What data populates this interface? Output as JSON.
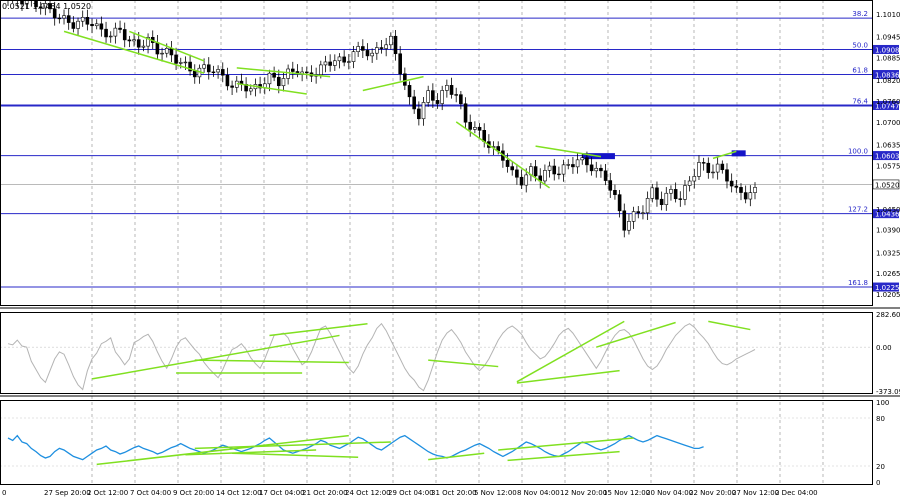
{
  "header": {
    "ohlc_text": "0.0521 1.0484 1.0520"
  },
  "colors": {
    "background": "#ffffff",
    "grid": "#9a9a9a",
    "fib_line": "#2828c8",
    "price_box": "#1414c8",
    "candle": "#000000",
    "divergence": "#80e020",
    "cci_line": "#b4b4b4",
    "rsi_line": "#1e8fe0",
    "axis_text": "#000000"
  },
  "chart_data": [
    {
      "type": "candlestick",
      "title": "",
      "ylim": [
        1.0205,
        1.1035
      ],
      "x_ticks": [
        "0",
        "27 Sep 20:00",
        "2 Oct 12:00",
        "7 Oct 04:00",
        "9 Oct 20:00",
        "14 Oct 12:00",
        "17 Oct 04:00",
        "21 Oct 20:00",
        "24 Oct 12:00",
        "29 Oct 04:00",
        "31 Oct 20:00",
        "5 Nov 12:00",
        "8 Nov 04:00",
        "12 Nov 20:00",
        "15 Nov 12:00",
        "20 Nov 04:00",
        "22 Nov 20:00",
        "27 Nov 12:00",
        "2 Dec 04:00"
      ],
      "y_ticks": [
        "1.1010",
        "1.0945",
        "1.0885",
        "1.0820",
        "1.0760",
        "1.0700",
        "1.0635",
        "1.0575",
        "1.0450",
        "1.0390",
        "1.0325",
        "1.0265",
        "1.0205"
      ],
      "fib_levels": [
        {
          "ratio": "38.2",
          "price": 1.0998,
          "badge": ""
        },
        {
          "ratio": "50.0",
          "price": 1.0908,
          "badge": "1.0908"
        },
        {
          "ratio": "61.8",
          "price": 1.0836,
          "badge": "1.0836"
        },
        {
          "ratio": "76.4",
          "price": 1.0747,
          "badge": "1.0747"
        },
        {
          "ratio": "100.0",
          "price": 1.0603,
          "badge": "1.0603"
        },
        {
          "ratio": "127.2",
          "price": 1.0436,
          "badge": "1.0436"
        },
        {
          "ratio": "161.8",
          "price": 1.0225,
          "badge": "1.0225"
        }
      ],
      "current_price": {
        "value": 1.052,
        "label": "1.0520"
      },
      "close_path": [
        [
          0,
          1.1055
        ],
        [
          4,
          1.1048
        ],
        [
          8,
          1.103
        ],
        [
          11,
          1.1
        ],
        [
          14,
          1.098
        ],
        [
          16,
          1.099
        ],
        [
          18,
          1.0985
        ],
        [
          20,
          1.096
        ],
        [
          22,
          1.095
        ],
        [
          24,
          1.0965
        ],
        [
          26,
          1.093
        ],
        [
          28,
          1.092
        ],
        [
          30,
          1.0935
        ],
        [
          32,
          1.0905
        ],
        [
          34,
          1.09
        ],
        [
          36,
          1.088
        ],
        [
          38,
          1.086
        ],
        [
          40,
          1.084
        ],
        [
          42,
          1.0855
        ],
        [
          44,
          1.085
        ],
        [
          46,
          1.083
        ],
        [
          48,
          1.08
        ],
        [
          50,
          1.081
        ],
        [
          52,
          1.079
        ],
        [
          54,
          1.0805
        ],
        [
          56,
          1.083
        ],
        [
          58,
          1.0815
        ],
        [
          60,
          1.084
        ],
        [
          62,
          1.085
        ],
        [
          64,
          1.083
        ],
        [
          66,
          1.0845
        ],
        [
          68,
          1.0865
        ],
        [
          70,
          1.088
        ],
        [
          72,
          1.087
        ],
        [
          74,
          1.09
        ],
        [
          76,
          1.091
        ],
        [
          78,
          1.089
        ],
        [
          80,
          1.092
        ],
        [
          82,
          1.0935
        ],
        [
          84,
          1.085
        ],
        [
          86,
          1.076
        ],
        [
          88,
          1.072
        ],
        [
          90,
          1.078
        ],
        [
          92,
          1.076
        ],
        [
          94,
          1.08
        ],
        [
          96,
          1.078
        ],
        [
          98,
          1.07
        ],
        [
          100,
          1.068
        ],
        [
          102,
          1.065
        ],
        [
          104,
          1.062
        ],
        [
          106,
          1.06
        ],
        [
          108,
          1.055
        ],
        [
          110,
          1.053
        ],
        [
          112,
          1.056
        ],
        [
          114,
          1.054
        ],
        [
          116,
          1.0565
        ],
        [
          118,
          1.0555
        ],
        [
          120,
          1.0575
        ],
        [
          122,
          1.059
        ],
        [
          124,
          1.058
        ],
        [
          126,
          1.056
        ],
        [
          128,
          1.054
        ],
        [
          130,
          1.048
        ],
        [
          132,
          1.04
        ],
        [
          134,
          1.043
        ],
        [
          136,
          1.045
        ],
        [
          138,
          1.05
        ],
        [
          140,
          1.047
        ],
        [
          142,
          1.05
        ],
        [
          144,
          1.048
        ],
        [
          146,
          1.053
        ],
        [
          148,
          1.058
        ],
        [
          150,
          1.056
        ],
        [
          152,
          1.057
        ],
        [
          154,
          1.054
        ],
        [
          156,
          1.05
        ],
        [
          158,
          1.049
        ],
        [
          160,
          1.05
        ]
      ],
      "divergence_lines": [
        {
          "from": [
            12,
            1.096
          ],
          "to": [
            42,
            1.084
          ]
        },
        {
          "from": [
            26,
            1.096
          ],
          "to": [
            42,
            1.0875
          ]
        },
        {
          "from": [
            49,
            1.0855
          ],
          "to": [
            69,
            1.083
          ]
        },
        {
          "from": [
            49,
            1.081
          ],
          "to": [
            64,
            1.078
          ]
        },
        {
          "from": [
            76,
            1.079
          ],
          "to": [
            89,
            1.083
          ]
        },
        {
          "from": [
            96,
            1.07
          ],
          "to": [
            116,
            1.051
          ]
        },
        {
          "from": [
            113,
            1.063
          ],
          "to": [
            127,
            1.06
          ]
        },
        {
          "from": [
            151,
            1.0595
          ],
          "to": [
            156,
            1.0615
          ]
        }
      ],
      "resistance_boxes": [
        {
          "from_index": 123,
          "to_index": 130,
          "price_low": 1.0598,
          "price_high": 1.061
        },
        {
          "from_index": 155,
          "to_index": 158,
          "price_low": 1.0603,
          "price_high": 1.0618
        }
      ]
    },
    {
      "type": "line",
      "name": "CCI",
      "ylim": [
        -373.0976,
        282.6012
      ],
      "y_ticks": [
        "282.6012",
        "0.00",
        "-373.0976"
      ],
      "values": [
        30,
        20,
        60,
        10,
        0,
        -120,
        -190,
        -260,
        -300,
        -200,
        -100,
        -40,
        -60,
        -150,
        -250,
        -320,
        -360,
        -200,
        -100,
        -50,
        30,
        50,
        80,
        -40,
        -90,
        -150,
        -100,
        40,
        60,
        90,
        110,
        50,
        -40,
        -120,
        -180,
        -100,
        0,
        60,
        80,
        30,
        -20,
        -60,
        -130,
        -180,
        -220,
        -260,
        -190,
        -100,
        -20,
        0,
        30,
        -20,
        -90,
        -140,
        -180,
        -100,
        0,
        100,
        110,
        120,
        80,
        -10,
        -80,
        -150,
        -120,
        -40,
        60,
        160,
        180,
        120,
        40,
        -40,
        -120,
        -180,
        -220,
        -160,
        -60,
        20,
        80,
        160,
        200,
        140,
        60,
        -20,
        -100,
        -180,
        -240,
        -280,
        -340,
        -370,
        -280,
        -160,
        -40,
        60,
        120,
        150,
        100,
        40,
        -40,
        -100,
        -160,
        -200,
        -160,
        -100,
        -20,
        60,
        120,
        160,
        180,
        150,
        110,
        40,
        -20,
        -60,
        -100,
        -80,
        -30,
        30,
        100,
        140,
        160,
        120,
        60,
        0,
        -60,
        -120,
        -180,
        -120,
        -40,
        40,
        100,
        140,
        150,
        120,
        60,
        -20,
        -100,
        -160,
        -190,
        -160,
        -100,
        -20,
        40,
        100,
        140,
        180,
        200,
        170,
        120,
        80,
        30,
        -40,
        -100,
        -140,
        -150,
        -130,
        -100,
        -80,
        -60,
        -40,
        -20
      ],
      "divergence_lines": [
        {
          "from": [
            18,
            -270
          ],
          "to": [
            71,
            100
          ]
        },
        {
          "from": [
            36,
            -220
          ],
          "to": [
            63,
            -220
          ]
        },
        {
          "from": [
            40,
            -110
          ],
          "to": [
            73,
            -130
          ]
        },
        {
          "from": [
            56,
            100
          ],
          "to": [
            77,
            200
          ]
        },
        {
          "from": [
            90,
            -110
          ],
          "to": [
            105,
            -165
          ]
        },
        {
          "from": [
            109,
            -295
          ],
          "to": [
            132,
            220
          ]
        },
        {
          "from": [
            109,
            -305
          ],
          "to": [
            131,
            -200
          ]
        },
        {
          "from": [
            126,
            0
          ],
          "to": [
            143,
            210
          ]
        },
        {
          "from": [
            150,
            220
          ],
          "to": [
            159,
            150
          ]
        }
      ]
    },
    {
      "type": "line",
      "name": "RSI",
      "ylim": [
        0,
        100
      ],
      "y_ticks": [
        "100",
        "80",
        "20",
        "0"
      ],
      "values": [
        55,
        52,
        58,
        50,
        48,
        42,
        38,
        33,
        30,
        32,
        38,
        42,
        40,
        36,
        32,
        30,
        28,
        32,
        36,
        40,
        42,
        45,
        40,
        38,
        35,
        37,
        40,
        43,
        45,
        42,
        40,
        38,
        35,
        37,
        40,
        43,
        45,
        48,
        45,
        42,
        40,
        38,
        36,
        38,
        40,
        43,
        46,
        44,
        42,
        40,
        38,
        40,
        42,
        45,
        48,
        52,
        55,
        50,
        45,
        40,
        38,
        36,
        38,
        40,
        42,
        45,
        48,
        52,
        50,
        46,
        44,
        42,
        45,
        48,
        52,
        56,
        54,
        50,
        46,
        42,
        40,
        44,
        48,
        52,
        56,
        58,
        54,
        50,
        46,
        42,
        38,
        35,
        33,
        32,
        30,
        32,
        35,
        38,
        40,
        43,
        46,
        48,
        45,
        42,
        38,
        35,
        32,
        35,
        38,
        42,
        46,
        50,
        48,
        45,
        42,
        38,
        35,
        33,
        32,
        35,
        38,
        42,
        46,
        50,
        48,
        45,
        42,
        40,
        42,
        45,
        48,
        52,
        55,
        58,
        55,
        52,
        50,
        52,
        55,
        58,
        56,
        54,
        52,
        50,
        48,
        46,
        44,
        42,
        42,
        44
      ],
      "divergence_lines": [
        {
          "from": [
            19,
            22
          ],
          "to": [
            73,
            58
          ]
        },
        {
          "from": [
            38,
            34
          ],
          "to": [
            66,
            40
          ]
        },
        {
          "from": [
            40,
            42
          ],
          "to": [
            82,
            50
          ]
        },
        {
          "from": [
            48,
            36
          ],
          "to": [
            75,
            31
          ]
        },
        {
          "from": [
            90,
            28
          ],
          "to": [
            102,
            36
          ]
        },
        {
          "from": [
            107,
            27
          ],
          "to": [
            131,
            38
          ]
        },
        {
          "from": [
            105,
            40
          ],
          "to": [
            134,
            55
          ]
        }
      ]
    }
  ]
}
